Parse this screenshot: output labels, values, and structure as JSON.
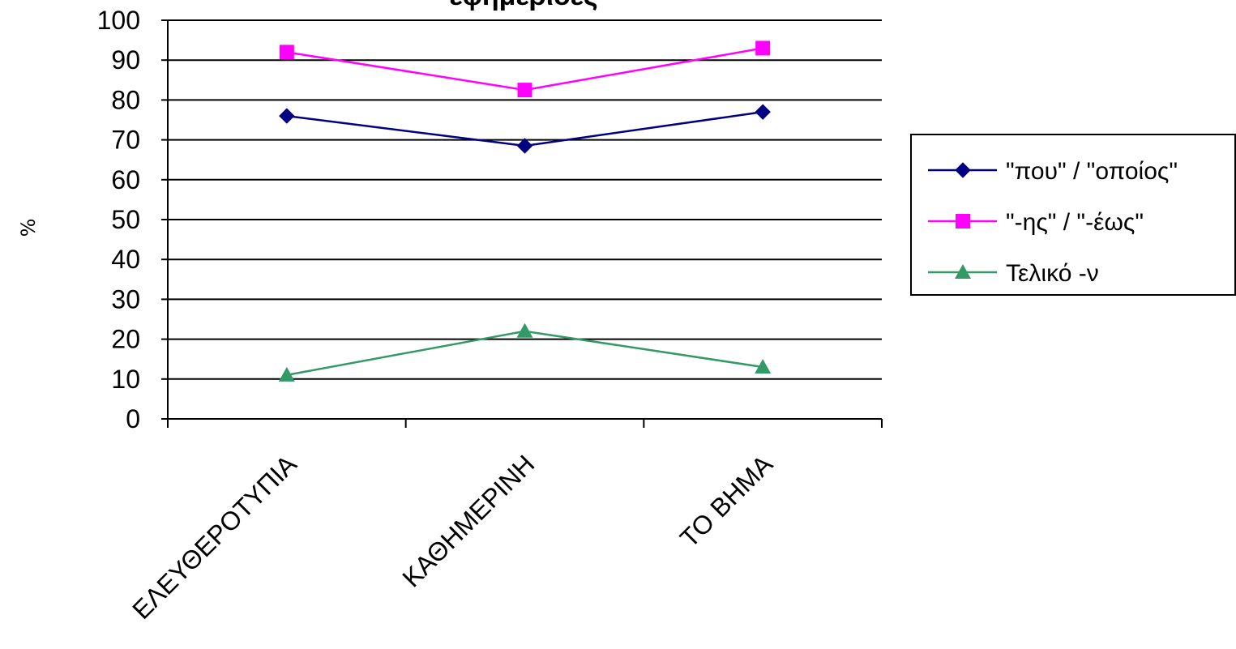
{
  "chart_data": {
    "type": "line",
    "title": "εφημερίδες",
    "ylabel": "%",
    "xlabel": "",
    "ylim": [
      0,
      100
    ],
    "yticks": [
      0,
      10,
      20,
      30,
      40,
      50,
      60,
      70,
      80,
      90,
      100
    ],
    "grid": true,
    "legend_position": "right",
    "categories": [
      "ΕΛΕΥΘΕΡΟΤΥΠΙΑ",
      "ΚΑΘΗΜΕΡΙΝΗ",
      "ΤΟ ΒΗΜΑ"
    ],
    "series": [
      {
        "name": "\"που\" / \"οποίος\"",
        "values": [
          76,
          68.5,
          77
        ],
        "color": "#000080",
        "marker": "diamond"
      },
      {
        "name": "\"-ης\" / \"-έως\"",
        "values": [
          92,
          82.5,
          93
        ],
        "color": "#FF00FF",
        "marker": "square"
      },
      {
        "name": "Τελικό -ν",
        "values": [
          11,
          22,
          13
        ],
        "color": "#339966",
        "marker": "triangle"
      }
    ]
  }
}
